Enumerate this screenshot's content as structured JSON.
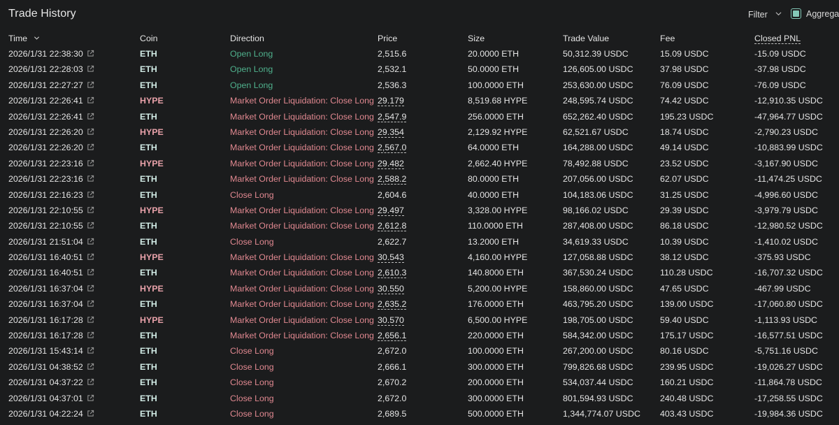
{
  "header": {
    "title": "Trade History",
    "filter_label": "Filter",
    "aggregate_label": "Aggregate"
  },
  "columns": {
    "time": "Time",
    "coin": "Coin",
    "direction": "Direction",
    "price": "Price",
    "size": "Size",
    "trade_value": "Trade Value",
    "fee": "Fee",
    "closed_pnl": "Closed PNL"
  },
  "colors": {
    "background": "#1b1c1d",
    "open_long": "#4fb08c",
    "close": "#e08890",
    "eth": "#cfe9e3",
    "hype": "#e6a0a8",
    "accent": "#84c9b8"
  },
  "rows": [
    {
      "time": "2026/1/31 22:38:30",
      "coin": "ETH",
      "direction": "Open Long",
      "price": "2,515.6",
      "price_dashed": false,
      "size": "20.0000 ETH",
      "trade_value": "50,312.39 USDC",
      "fee": "15.09 USDC",
      "closed_pnl": "-15.09 USDC"
    },
    {
      "time": "2026/1/31 22:28:03",
      "coin": "ETH",
      "direction": "Open Long",
      "price": "2,532.1",
      "price_dashed": false,
      "size": "50.0000 ETH",
      "trade_value": "126,605.00 USDC",
      "fee": "37.98 USDC",
      "closed_pnl": "-37.98 USDC"
    },
    {
      "time": "2026/1/31 22:27:27",
      "coin": "ETH",
      "direction": "Open Long",
      "price": "2,536.3",
      "price_dashed": false,
      "size": "100.0000 ETH",
      "trade_value": "253,630.00 USDC",
      "fee": "76.09 USDC",
      "closed_pnl": "-76.09 USDC"
    },
    {
      "time": "2026/1/31 22:26:41",
      "coin": "HYPE",
      "direction": "Market Order Liquidation: Close Long",
      "price": "29.179",
      "price_dashed": true,
      "size": "8,519.68 HYPE",
      "trade_value": "248,595.74 USDC",
      "fee": "74.42 USDC",
      "closed_pnl": "-12,910.35 USDC"
    },
    {
      "time": "2026/1/31 22:26:41",
      "coin": "ETH",
      "direction": "Market Order Liquidation: Close Long",
      "price": "2,547.9",
      "price_dashed": true,
      "size": "256.0000 ETH",
      "trade_value": "652,262.40 USDC",
      "fee": "195.23 USDC",
      "closed_pnl": "-47,964.77 USDC"
    },
    {
      "time": "2026/1/31 22:26:20",
      "coin": "HYPE",
      "direction": "Market Order Liquidation: Close Long",
      "price": "29.354",
      "price_dashed": true,
      "size": "2,129.92 HYPE",
      "trade_value": "62,521.67 USDC",
      "fee": "18.74 USDC",
      "closed_pnl": "-2,790.23 USDC"
    },
    {
      "time": "2026/1/31 22:26:20",
      "coin": "ETH",
      "direction": "Market Order Liquidation: Close Long",
      "price": "2,567.0",
      "price_dashed": true,
      "size": "64.0000 ETH",
      "trade_value": "164,288.00 USDC",
      "fee": "49.14 USDC",
      "closed_pnl": "-10,883.99 USDC"
    },
    {
      "time": "2026/1/31 22:23:16",
      "coin": "HYPE",
      "direction": "Market Order Liquidation: Close Long",
      "price": "29.482",
      "price_dashed": true,
      "size": "2,662.40 HYPE",
      "trade_value": "78,492.88 USDC",
      "fee": "23.52 USDC",
      "closed_pnl": "-3,167.90 USDC"
    },
    {
      "time": "2026/1/31 22:23:16",
      "coin": "ETH",
      "direction": "Market Order Liquidation: Close Long",
      "price": "2,588.2",
      "price_dashed": true,
      "size": "80.0000 ETH",
      "trade_value": "207,056.00 USDC",
      "fee": "62.07 USDC",
      "closed_pnl": "-11,474.25 USDC"
    },
    {
      "time": "2026/1/31 22:16:23",
      "coin": "ETH",
      "direction": "Close Long",
      "price": "2,604.6",
      "price_dashed": false,
      "size": "40.0000 ETH",
      "trade_value": "104,183.06 USDC",
      "fee": "31.25 USDC",
      "closed_pnl": "-4,996.60 USDC"
    },
    {
      "time": "2026/1/31 22:10:55",
      "coin": "HYPE",
      "direction": "Market Order Liquidation: Close Long",
      "price": "29.497",
      "price_dashed": true,
      "size": "3,328.00 HYPE",
      "trade_value": "98,166.02 USDC",
      "fee": "29.39 USDC",
      "closed_pnl": "-3,979.79 USDC"
    },
    {
      "time": "2026/1/31 22:10:55",
      "coin": "ETH",
      "direction": "Market Order Liquidation: Close Long",
      "price": "2,612.8",
      "price_dashed": true,
      "size": "110.0000 ETH",
      "trade_value": "287,408.00 USDC",
      "fee": "86.18 USDC",
      "closed_pnl": "-12,980.52 USDC"
    },
    {
      "time": "2026/1/31 21:51:04",
      "coin": "ETH",
      "direction": "Close Long",
      "price": "2,622.7",
      "price_dashed": false,
      "size": "13.2000 ETH",
      "trade_value": "34,619.33 USDC",
      "fee": "10.39 USDC",
      "closed_pnl": "-1,410.02 USDC"
    },
    {
      "time": "2026/1/31 16:40:51",
      "coin": "HYPE",
      "direction": "Market Order Liquidation: Close Long",
      "price": "30.543",
      "price_dashed": true,
      "size": "4,160.00 HYPE",
      "trade_value": "127,058.88 USDC",
      "fee": "38.12 USDC",
      "closed_pnl": "-375.93 USDC"
    },
    {
      "time": "2026/1/31 16:40:51",
      "coin": "ETH",
      "direction": "Market Order Liquidation: Close Long",
      "price": "2,610.3",
      "price_dashed": true,
      "size": "140.8000 ETH",
      "trade_value": "367,530.24 USDC",
      "fee": "110.28 USDC",
      "closed_pnl": "-16,707.32 USDC"
    },
    {
      "time": "2026/1/31 16:37:04",
      "coin": "HYPE",
      "direction": "Market Order Liquidation: Close Long",
      "price": "30.550",
      "price_dashed": true,
      "size": "5,200.00 HYPE",
      "trade_value": "158,860.00 USDC",
      "fee": "47.65 USDC",
      "closed_pnl": "-467.99 USDC"
    },
    {
      "time": "2026/1/31 16:37:04",
      "coin": "ETH",
      "direction": "Market Order Liquidation: Close Long",
      "price": "2,635.2",
      "price_dashed": true,
      "size": "176.0000 ETH",
      "trade_value": "463,795.20 USDC",
      "fee": "139.00 USDC",
      "closed_pnl": "-17,060.80 USDC"
    },
    {
      "time": "2026/1/31 16:17:28",
      "coin": "HYPE",
      "direction": "Market Order Liquidation: Close Long",
      "price": "30.570",
      "price_dashed": true,
      "size": "6,500.00 HYPE",
      "trade_value": "198,705.00 USDC",
      "fee": "59.40 USDC",
      "closed_pnl": "-1,113.93 USDC"
    },
    {
      "time": "2026/1/31 16:17:28",
      "coin": "ETH",
      "direction": "Market Order Liquidation: Close Long",
      "price": "2,656.1",
      "price_dashed": true,
      "size": "220.0000 ETH",
      "trade_value": "584,342.00 USDC",
      "fee": "175.17 USDC",
      "closed_pnl": "-16,577.51 USDC"
    },
    {
      "time": "2026/1/31 15:43:14",
      "coin": "ETH",
      "direction": "Close Long",
      "price": "2,672.0",
      "price_dashed": false,
      "size": "100.0000 ETH",
      "trade_value": "267,200.00 USDC",
      "fee": "80.16 USDC",
      "closed_pnl": "-5,751.16 USDC"
    },
    {
      "time": "2026/1/31 04:38:52",
      "coin": "ETH",
      "direction": "Close Long",
      "price": "2,666.1",
      "price_dashed": false,
      "size": "300.0000 ETH",
      "trade_value": "799,826.68 USDC",
      "fee": "239.95 USDC",
      "closed_pnl": "-19,026.27 USDC"
    },
    {
      "time": "2026/1/31 04:37:22",
      "coin": "ETH",
      "direction": "Close Long",
      "price": "2,670.2",
      "price_dashed": false,
      "size": "200.0000 ETH",
      "trade_value": "534,037.44 USDC",
      "fee": "160.21 USDC",
      "closed_pnl": "-11,864.78 USDC"
    },
    {
      "time": "2026/1/31 04:37:01",
      "coin": "ETH",
      "direction": "Close Long",
      "price": "2,672.0",
      "price_dashed": false,
      "size": "300.0000 ETH",
      "trade_value": "801,594.93 USDC",
      "fee": "240.48 USDC",
      "closed_pnl": "-17,258.55 USDC"
    },
    {
      "time": "2026/1/31 04:22:24",
      "coin": "ETH",
      "direction": "Close Long",
      "price": "2,689.5",
      "price_dashed": false,
      "size": "500.0000 ETH",
      "trade_value": "1,344,774.07 USDC",
      "fee": "403.43 USDC",
      "closed_pnl": "-19,984.36 USDC"
    }
  ]
}
